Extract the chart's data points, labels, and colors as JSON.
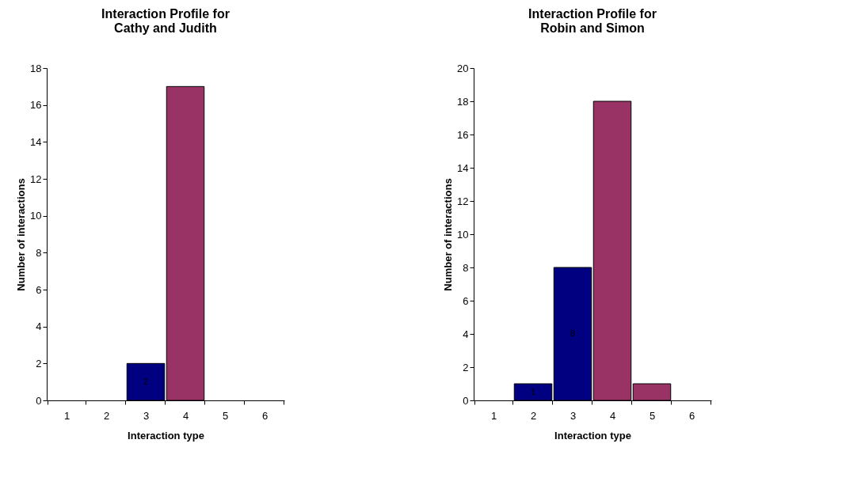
{
  "chart_data": [
    {
      "type": "bar",
      "title": "Interaction Profile for\nCathy and Judith",
      "xlabel": "Interaction type",
      "ylabel": "Number of interactions",
      "categories": [
        "1",
        "2",
        "3",
        "4",
        "5",
        "6"
      ],
      "values": [
        0,
        0,
        2,
        17,
        0,
        0
      ],
      "colors": [
        "#000080",
        "#000080",
        "#000080",
        "#993366",
        "#993366",
        "#993366"
      ],
      "value_labels": [
        null,
        null,
        "2",
        null,
        null,
        null
      ],
      "ylim": [
        0,
        18
      ],
      "yticks": [
        0,
        2,
        4,
        6,
        8,
        10,
        12,
        14,
        16,
        18
      ],
      "grid": false
    },
    {
      "type": "bar",
      "title": "Interaction Profile for\nRobin and Simon",
      "xlabel": "Interaction type",
      "ylabel": "Number of interactions",
      "categories": [
        "1",
        "2",
        "3",
        "4",
        "5",
        "6"
      ],
      "values": [
        0,
        1,
        8,
        18,
        1,
        0
      ],
      "colors": [
        "#000080",
        "#000080",
        "#000080",
        "#993366",
        "#993366",
        "#993366"
      ],
      "value_labels": [
        null,
        "1",
        "8",
        null,
        null,
        null
      ],
      "ylim": [
        0,
        20
      ],
      "yticks": [
        0,
        2,
        4,
        6,
        8,
        10,
        12,
        14,
        16,
        18,
        20
      ],
      "grid": false
    }
  ]
}
